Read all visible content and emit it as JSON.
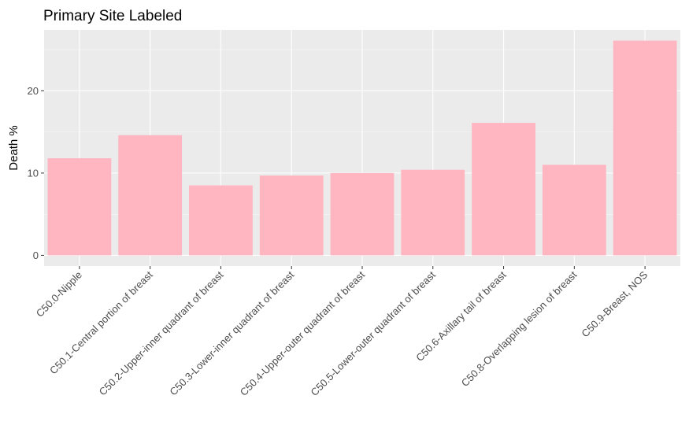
{
  "chart_data": {
    "type": "bar",
    "title": "Primary Site Labeled",
    "xlabel": "",
    "ylabel": "Death %",
    "categories": [
      "C50.0-Nipple",
      "C50.1-Central portion of breast",
      "C50.2-Upper-inner quadrant of breast",
      "C50.3-Lower-inner quadrant of breast",
      "C50.4-Upper-outer quadrant of breast",
      "C50.5-Lower-outer quadrant of breast",
      "C50.6-Axillary tail of breast",
      "C50.8-Overlapping lesion of breast",
      "C50.9-Breast, NOS"
    ],
    "values": [
      11.8,
      14.6,
      8.5,
      9.7,
      10.0,
      10.4,
      16.1,
      11.0,
      26.1
    ],
    "ylim": [
      -1.3,
      27.4
    ],
    "yticks": [
      0,
      10,
      20
    ],
    "grid": true,
    "legend": "none",
    "colors": {
      "bar": "#FFB6C1",
      "panel": "#EBEBEB",
      "grid_major": "#FFFFFF",
      "tick_label": "#4D4D4D",
      "tick_mark": "#333333"
    }
  }
}
